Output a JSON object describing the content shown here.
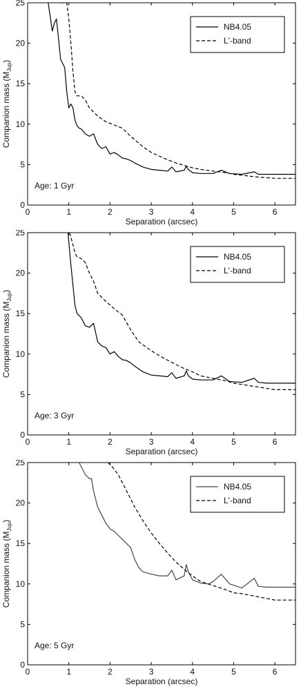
{
  "chart_data": [
    {
      "type": "line",
      "xlabel": "Separation (arcsec)",
      "ylabel_main": "Companion mass (M",
      "ylabel_sub": "Jup",
      "ylabel_close": ")",
      "xlim": [
        0,
        6.5
      ],
      "ylim": [
        0,
        25
      ],
      "xticks": [
        0,
        1,
        2,
        3,
        4,
        5,
        6
      ],
      "yticks": [
        0,
        5,
        10,
        15,
        20,
        25
      ],
      "legend_position": "top-right",
      "annotation": "Age: 1 Gyr",
      "series": [
        {
          "name": "NB4.05",
          "style": "solid",
          "x": [
            0.5,
            0.6,
            0.65,
            0.7,
            0.75,
            0.8,
            0.85,
            0.9,
            0.95,
            1.0,
            1.05,
            1.1,
            1.15,
            1.2,
            1.25,
            1.3,
            1.4,
            1.5,
            1.6,
            1.7,
            1.8,
            1.9,
            2.0,
            2.1,
            2.2,
            2.3,
            2.4,
            2.5,
            2.6,
            2.8,
            3.0,
            3.2,
            3.4,
            3.5,
            3.6,
            3.8,
            3.85,
            3.9,
            4.0,
            4.2,
            4.5,
            4.7,
            4.9,
            5.2,
            5.5,
            5.6,
            5.8,
            6.0,
            6.5
          ],
          "y": [
            25,
            21.5,
            22.5,
            23.0,
            20.5,
            18.0,
            17.5,
            17.0,
            14.0,
            12.0,
            12.5,
            12.0,
            10.5,
            9.8,
            9.5,
            9.4,
            8.8,
            8.5,
            8.8,
            7.5,
            7.0,
            7.2,
            6.3,
            6.5,
            6.2,
            5.8,
            5.7,
            5.5,
            5.2,
            4.7,
            4.4,
            4.3,
            4.2,
            4.7,
            4.1,
            4.3,
            4.8,
            4.4,
            4.0,
            3.9,
            3.9,
            4.3,
            3.9,
            3.8,
            4.1,
            3.8,
            3.8,
            3.8,
            3.8
          ]
        },
        {
          "name": "L'-band",
          "style": "dashed",
          "x": [
            0.8,
            0.95,
            1.0,
            1.05,
            1.1,
            1.15,
            1.2,
            1.3,
            1.4,
            1.5,
            1.7,
            1.9,
            2.1,
            2.3,
            2.5,
            2.8,
            3.0,
            3.3,
            3.6,
            3.8,
            4.0,
            4.2,
            4.5,
            4.8,
            5.0,
            5.5,
            6.0,
            6.5
          ],
          "y": [
            25,
            25,
            23.0,
            20.0,
            16.5,
            14.0,
            13.5,
            13.5,
            13.0,
            12.0,
            11.0,
            10.3,
            9.9,
            9.5,
            8.5,
            7.2,
            6.5,
            5.8,
            5.2,
            4.9,
            4.6,
            4.4,
            4.2,
            4.0,
            3.8,
            3.5,
            3.3,
            3.3
          ]
        }
      ]
    },
    {
      "type": "line",
      "xlabel": "Separation (arcsec)",
      "ylabel_main": "Companion mass (M",
      "ylabel_sub": "Jup",
      "ylabel_close": ")",
      "xlim": [
        0,
        6.5
      ],
      "ylim": [
        0,
        25
      ],
      "xticks": [
        0,
        1,
        2,
        3,
        4,
        5,
        6
      ],
      "yticks": [
        0,
        5,
        10,
        15,
        20,
        25
      ],
      "legend_position": "top-right",
      "annotation": "Age: 3 Gyr",
      "series": [
        {
          "name": "NB4.05",
          "style": "solid",
          "x": [
            0.98,
            1.05,
            1.1,
            1.15,
            1.2,
            1.3,
            1.4,
            1.5,
            1.6,
            1.7,
            1.8,
            1.9,
            2.0,
            2.1,
            2.2,
            2.3,
            2.4,
            2.5,
            2.6,
            2.8,
            3.0,
            3.2,
            3.4,
            3.5,
            3.6,
            3.8,
            3.85,
            3.9,
            4.0,
            4.2,
            4.5,
            4.7,
            4.9,
            5.2,
            5.5,
            5.6,
            5.8,
            6.0,
            6.5
          ],
          "y": [
            25,
            21.0,
            18.5,
            16.0,
            15.0,
            14.5,
            13.5,
            13.3,
            13.8,
            11.5,
            11.0,
            10.8,
            10.0,
            10.3,
            9.7,
            9.3,
            9.2,
            8.9,
            8.5,
            7.8,
            7.4,
            7.3,
            7.2,
            7.7,
            7.0,
            7.3,
            7.9,
            7.3,
            6.9,
            6.8,
            6.8,
            7.3,
            6.6,
            6.5,
            7.0,
            6.5,
            6.4,
            6.4,
            6.4
          ]
        },
        {
          "name": "L'-band",
          "style": "dashed",
          "x": [
            1.02,
            1.1,
            1.15,
            1.2,
            1.3,
            1.4,
            1.5,
            1.6,
            1.7,
            1.9,
            2.1,
            2.3,
            2.5,
            2.7,
            3.0,
            3.3,
            3.6,
            3.8,
            4.0,
            4.2,
            4.5,
            4.8,
            5.0,
            5.5,
            6.0,
            6.5
          ],
          "y": [
            25,
            23.5,
            22.5,
            22.0,
            21.8,
            21.3,
            20.0,
            19.0,
            17.5,
            16.5,
            15.6,
            14.8,
            13.0,
            11.5,
            10.4,
            9.5,
            8.7,
            8.2,
            7.8,
            7.3,
            7.0,
            6.7,
            6.4,
            6.0,
            5.6,
            5.6
          ]
        }
      ]
    },
    {
      "type": "line",
      "xlabel": "Separation (arcsec)",
      "ylabel_main": "Companion mass (M",
      "ylabel_sub": "Jup",
      "ylabel_close": ")",
      "xlim": [
        0,
        6.5
      ],
      "ylim": [
        0,
        25
      ],
      "xticks": [
        0,
        1,
        2,
        3,
        4,
        5,
        6
      ],
      "yticks": [
        0,
        5,
        10,
        15,
        20,
        25
      ],
      "legend_position": "top-right",
      "annotation": "Age: 5 Gyr",
      "series": [
        {
          "name": "NB4.05",
          "style": "solid",
          "x": [
            1.25,
            1.4,
            1.5,
            1.55,
            1.6,
            1.7,
            1.8,
            1.9,
            2.0,
            2.1,
            2.2,
            2.3,
            2.4,
            2.5,
            2.6,
            2.7,
            2.8,
            3.0,
            3.2,
            3.4,
            3.5,
            3.6,
            3.8,
            3.85,
            3.9,
            4.0,
            4.2,
            4.4,
            4.5,
            4.7,
            4.9,
            5.2,
            5.5,
            5.6,
            5.8,
            6.0,
            6.5
          ],
          "y": [
            25,
            23.5,
            23.0,
            23.0,
            21.5,
            19.5,
            18.5,
            17.5,
            16.8,
            16.5,
            16.0,
            15.5,
            15.0,
            14.5,
            13.0,
            12.0,
            11.5,
            11.2,
            11.0,
            11.0,
            11.7,
            10.5,
            11.0,
            12.4,
            11.5,
            10.5,
            10.1,
            10.0,
            10.3,
            11.2,
            10.0,
            9.5,
            10.7,
            9.7,
            9.6,
            9.6,
            9.6
          ]
        },
        {
          "name": "L'-band",
          "style": "dashed",
          "x": [
            1.95,
            2.05,
            2.2,
            2.4,
            2.6,
            2.8,
            3.0,
            3.2,
            3.4,
            3.6,
            3.8,
            4.0,
            4.2,
            4.5,
            4.8,
            5.0,
            5.2,
            5.5,
            6.0,
            6.5
          ],
          "y": [
            25,
            24.5,
            23.5,
            21.5,
            19.5,
            17.8,
            16.3,
            15.0,
            13.8,
            12.7,
            11.8,
            11.0,
            10.3,
            9.8,
            9.3,
            8.9,
            8.8,
            8.5,
            8.0,
            8.0
          ]
        }
      ]
    }
  ]
}
